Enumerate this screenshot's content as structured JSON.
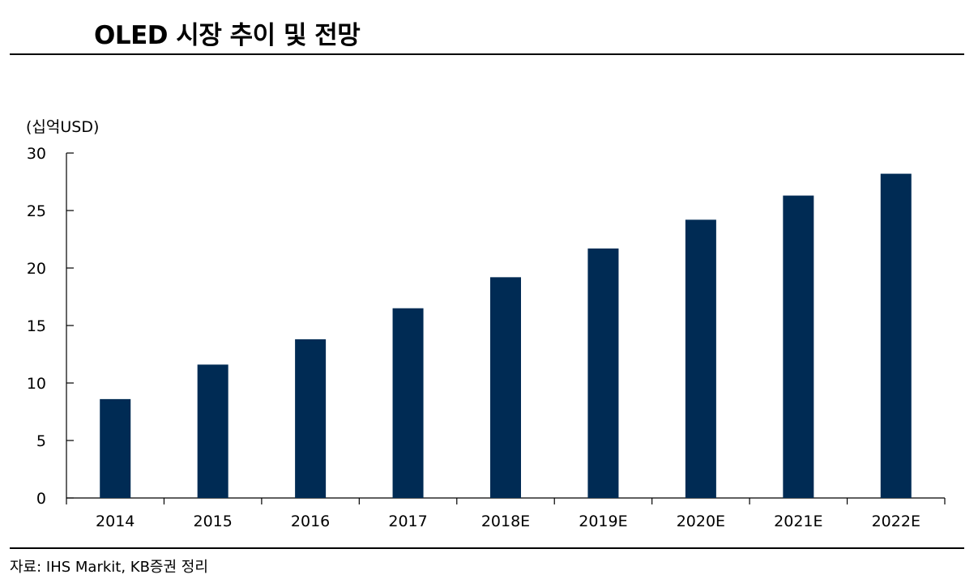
{
  "title": "OLED 시장 추이 및 전망",
  "source": "자료: IHS Markit, KB증권 정리",
  "chart_data": {
    "type": "bar",
    "title": "OLED 시장 추이 및 전망",
    "ylabel": "(십억USD)",
    "xlabel": "",
    "categories": [
      "2014",
      "2015",
      "2016",
      "2017",
      "2018E",
      "2019E",
      "2020E",
      "2021E",
      "2022E"
    ],
    "values": [
      8.6,
      11.6,
      13.8,
      16.5,
      19.2,
      21.7,
      24.2,
      26.3,
      28.2
    ],
    "ylim": [
      0,
      30
    ],
    "yticks": [
      0,
      5,
      10,
      15,
      20,
      25,
      30
    ],
    "grid": false,
    "legend": "none",
    "bar_color": "#002b54"
  }
}
